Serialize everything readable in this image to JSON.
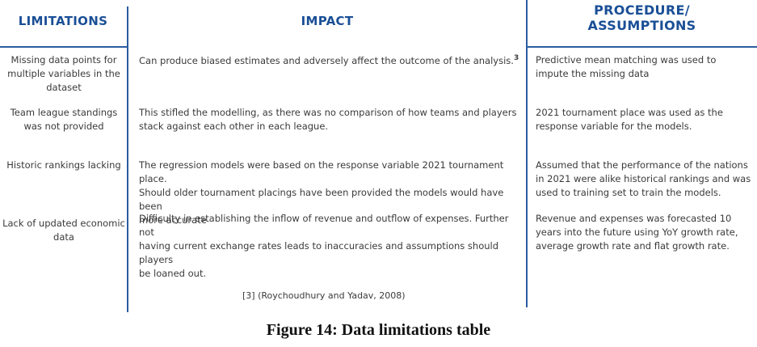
{
  "headers": {
    "limitations": "LIMITATIONS",
    "impact": "IMPACT",
    "procedure_line1": "PROCEDURE/",
    "procedure_line2": "ASSUMPTIONS"
  },
  "rows": [
    {
      "limitation": [
        "Missing data points for",
        "multiple variables in the",
        "dataset"
      ],
      "impact": [
        "Can produce biased estimates and adversely affect the outcome of the analysis."
      ],
      "impact_sup": "3",
      "procedure": [
        "Predictive mean matching was used to",
        "impute the missing data"
      ]
    },
    {
      "limitation": [
        "Team league standings",
        "was not provided"
      ],
      "impact": [
        "This stifled the modelling, as there was no comparison of how teams and players",
        "stack against each other in each league."
      ],
      "procedure": [
        "2021 tournament place was used as the",
        "response variable for the models."
      ]
    },
    {
      "limitation": [
        "Historic rankings lacking"
      ],
      "impact": [
        "The regression models were based on the response variable 2021 tournament place.",
        "Should older tournament placings have been provided the models would have been",
        "more accurate"
      ],
      "procedure": [
        "Assumed that the performance of the nations",
        "in 2021 were alike historical rankings and was",
        "used to training set to train the models."
      ]
    },
    {
      "limitation": [
        "Lack of updated economic",
        "data"
      ],
      "impact": [
        "Difficulty in establishing the inflow of revenue and outflow of expenses. Further not",
        "having current exchange rates leads to inaccuracies and assumptions should players",
        "be loaned out."
      ],
      "procedure": [
        "Revenue and expenses was forecasted 10",
        "years into the future using YoY growth rate,",
        "average growth rate and flat growth rate."
      ]
    }
  ],
  "footnote": "[3] (Roychoudhury and Yadav, 2008)",
  "caption": "Figure 14: Data limitations table",
  "colors": {
    "accent": "#1a4f96",
    "rule": "#2a5d9f"
  }
}
